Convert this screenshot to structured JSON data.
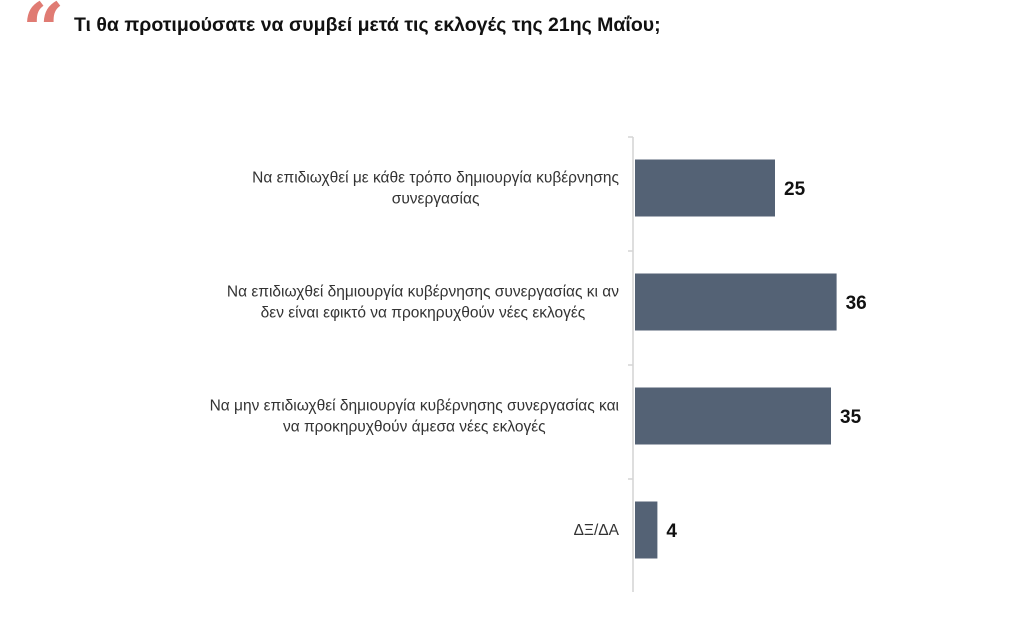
{
  "header": {
    "title": "Τι θα προτιμούσατε να συμβεί μετά τις εκλογές της 21ης Μαΐου;"
  },
  "colors": {
    "bar": "#546275",
    "quote_mark": "#e07b73",
    "axis": "#d4d4d4"
  },
  "chart_data": {
    "type": "bar",
    "orientation": "horizontal",
    "title": "Τι θα προτιμούσατε να συμβεί μετά τις εκλογές της 21ης Μαΐου;",
    "categories": [
      [
        "Να επιδιωχθεί με κάθε τρόπο δημιουργία κυβέρνησης",
        "συνεργασίας"
      ],
      [
        "Να επιδιωχθεί δημιουργία κυβέρνησης συνεργασίας κι αν",
        "δεν είναι εφικτό να προκηρυχθούν νέες εκλογές"
      ],
      [
        "Να μην επιδιωχθεί δημιουργία κυβέρνησης συνεργασίας και",
        "να προκηρυχθούν άμεσα νέες εκλογές"
      ],
      [
        "ΔΞ/ΔΑ"
      ]
    ],
    "values": [
      25,
      36,
      35,
      4
    ],
    "xlim": [
      0,
      40
    ],
    "grid": false,
    "legend": "none"
  }
}
